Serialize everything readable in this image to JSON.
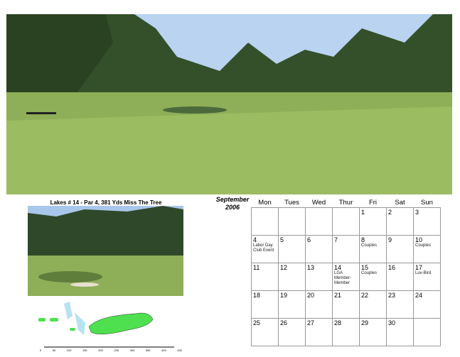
{
  "caption": "Lakes # 14  -  Par 4, 381 Yds  Miss The Tree",
  "month": "September",
  "year": "2006",
  "weekdays": [
    "Mon",
    "Tues",
    "Wed",
    "Thur",
    "Fri",
    "Sat",
    "Sun"
  ],
  "weeks": [
    [
      {
        "d": "",
        "e": ""
      },
      {
        "d": "",
        "e": ""
      },
      {
        "d": "",
        "e": ""
      },
      {
        "d": "",
        "e": ""
      },
      {
        "d": "1",
        "e": ""
      },
      {
        "d": "2",
        "e": ""
      },
      {
        "d": "3",
        "e": ""
      }
    ],
    [
      {
        "d": "4",
        "e": "Labor Day Club Event"
      },
      {
        "d": "5",
        "e": ""
      },
      {
        "d": "6",
        "e": ""
      },
      {
        "d": "7",
        "e": ""
      },
      {
        "d": "8",
        "e": "Couples"
      },
      {
        "d": "9",
        "e": ""
      },
      {
        "d": "10",
        "e": "Couples"
      }
    ],
    [
      {
        "d": "11",
        "e": ""
      },
      {
        "d": "12",
        "e": ""
      },
      {
        "d": "13",
        "e": ""
      },
      {
        "d": "14",
        "e": "LGA Member-Member"
      },
      {
        "d": "15",
        "e": "Couples"
      },
      {
        "d": "16",
        "e": ""
      },
      {
        "d": "17",
        "e": "Luv-Bird"
      }
    ],
    [
      {
        "d": "18",
        "e": ""
      },
      {
        "d": "19",
        "e": ""
      },
      {
        "d": "20",
        "e": ""
      },
      {
        "d": "21",
        "e": ""
      },
      {
        "d": "22",
        "e": ""
      },
      {
        "d": "23",
        "e": ""
      },
      {
        "d": "24",
        "e": ""
      }
    ],
    [
      {
        "d": "25",
        "e": ""
      },
      {
        "d": "26",
        "e": ""
      },
      {
        "d": "27",
        "e": ""
      },
      {
        "d": "28",
        "e": ""
      },
      {
        "d": "29",
        "e": ""
      },
      {
        "d": "30",
        "e": ""
      },
      {
        "d": "",
        "e": ""
      }
    ]
  ],
  "scale": [
    "0",
    "50",
    "100",
    "150",
    "200",
    "250",
    "300",
    "350",
    "400",
    "450"
  ]
}
